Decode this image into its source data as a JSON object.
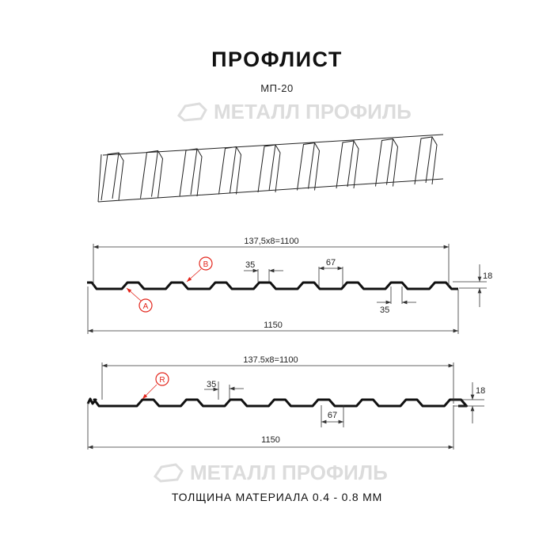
{
  "header": {
    "title": "ПРОФЛИСТ",
    "model": "МП-20"
  },
  "watermark": "МЕТАЛЛ ПРОФИЛЬ",
  "profile_top": {
    "pitch_label": "137,5x8=1100",
    "total_label": "1150",
    "rib_top_label": "35",
    "rib_bottom_label": "35",
    "valley_label": "67",
    "height_label": "18",
    "marker_a": "A",
    "marker_b": "B"
  },
  "profile_bottom": {
    "pitch_label": "137.5x8=1100",
    "total_label": "1150",
    "rib_top_label": "35",
    "valley_label": "67",
    "height_label": "18",
    "marker_r": "R"
  },
  "footer": {
    "thickness": "ТОЛЩИНА МАТЕРИАЛА 0.4 - 0.8 ММ"
  },
  "colors": {
    "line": "#111111",
    "dim": "#333333",
    "marker": "#e3261c",
    "watermark": "#d9d9d9"
  }
}
